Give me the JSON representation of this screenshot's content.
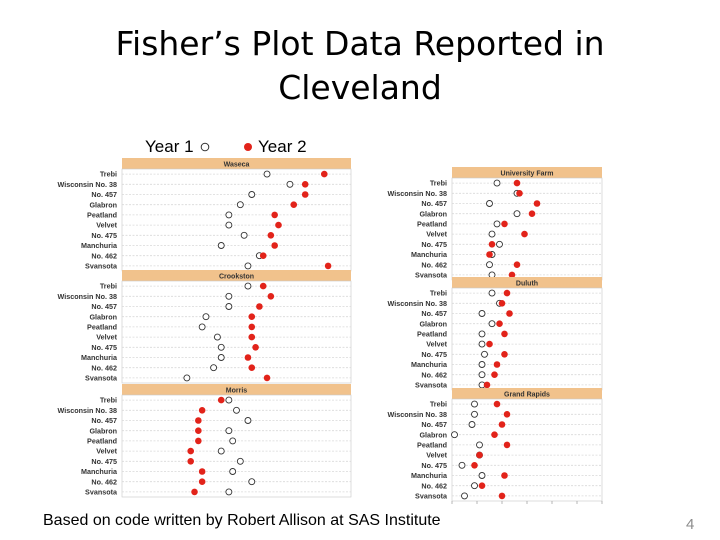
{
  "slide": {
    "title_line1": "Fisher’s Plot Data Reported in",
    "title_line2": "Cleveland",
    "legend_year1": "Year 1",
    "legend_year2": "Year 2",
    "footnote": "Based on code written by Robert Allison at SAS Institute",
    "page_number": "4"
  },
  "colors": {
    "year2": "#e2231a",
    "band": "#f1c28c",
    "gridline": "#d9d9d9",
    "axis_text": "#5a5a5a"
  },
  "chart_data": {
    "type": "dot",
    "title": "",
    "xlabel": "",
    "ylabel": "",
    "xlim": [
      10,
      70
    ],
    "x_ticks": [
      "10",
      "20",
      "30",
      "40",
      "50",
      "60",
      "70"
    ],
    "grid": true,
    "legend_position": "top-left",
    "series_names": [
      "Year 1",
      "Year 2"
    ],
    "categories": [
      "Trebi",
      "Wisconsin No. 38",
      "No. 457",
      "Glabron",
      "Peatland",
      "Velvet",
      "No. 475",
      "Manchuria",
      "No. 462",
      "Svansota"
    ],
    "panels": [
      {
        "site": "Waseca",
        "year1": [
          48,
          54,
          44,
          41,
          38,
          38,
          42,
          36,
          46,
          43
        ],
        "year2": [
          63,
          58,
          58,
          55,
          50,
          51,
          49,
          50,
          47,
          64
        ]
      },
      {
        "site": "Crookston",
        "year1": [
          43,
          38,
          38,
          32,
          31,
          35,
          36,
          36,
          34,
          27
        ],
        "year2": [
          47,
          49,
          46,
          44,
          44,
          44,
          45,
          43,
          44,
          48
        ]
      },
      {
        "site": "Morris",
        "year1": [
          38,
          40,
          43,
          38,
          39,
          36,
          41,
          39,
          44,
          38
        ],
        "year2": [
          36,
          31,
          30,
          30,
          30,
          28,
          28,
          31,
          31,
          29
        ]
      },
      {
        "site": "University Farm",
        "year1": [
          28,
          36,
          25,
          36,
          28,
          26,
          29,
          26,
          25,
          26
        ],
        "year2": [
          36,
          37,
          44,
          42,
          31,
          39,
          26,
          25,
          36,
          34
        ]
      },
      {
        "site": "Duluth",
        "year1": [
          26,
          29,
          22,
          26,
          22,
          22,
          23,
          22,
          22,
          22
        ],
        "year2": [
          32,
          30,
          33,
          29,
          31,
          25,
          31,
          28,
          27,
          24
        ]
      },
      {
        "site": "Grand Rapids",
        "year1": [
          19,
          19,
          18,
          11,
          21,
          21,
          14,
          22,
          19,
          15
        ],
        "year2": [
          28,
          32,
          30,
          27,
          32,
          21,
          19,
          31,
          22,
          30
        ]
      }
    ]
  }
}
